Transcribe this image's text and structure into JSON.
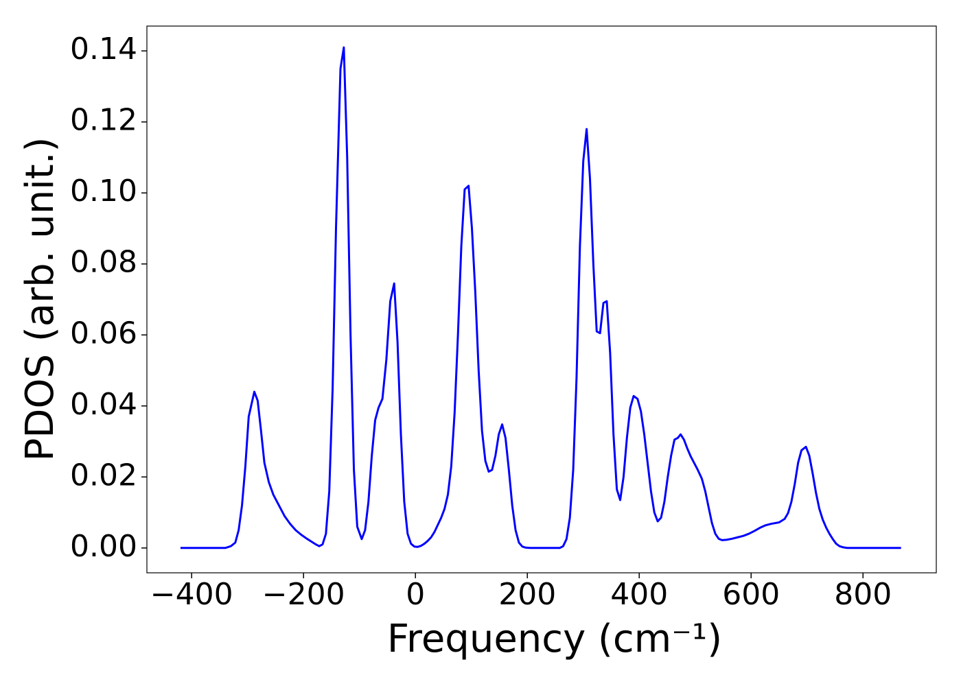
{
  "chart_data": {
    "type": "line",
    "x_label": "Frequency (cm⁻¹)",
    "y_label": "PDOS (arb. unit.)",
    "color": "#0000ff",
    "xlim": [
      -480,
      931
    ],
    "ylim": [
      -0.007,
      0.147
    ],
    "xticks": [
      {
        "value": -400,
        "label": "−400"
      },
      {
        "value": -200,
        "label": "−200"
      },
      0,
      200,
      400,
      600,
      800
    ],
    "yticks": [
      {
        "value": 0,
        "label": "0.00"
      },
      {
        "value": 0.02,
        "label": "0.02"
      },
      {
        "value": 0.04,
        "label": "0.04"
      },
      {
        "value": 0.06,
        "label": "0.06"
      },
      {
        "value": 0.08,
        "label": "0.08"
      },
      {
        "value": 0.1,
        "label": "0.10"
      },
      {
        "value": 0.12,
        "label": "0.12"
      },
      {
        "value": 0.14,
        "label": "0.14"
      }
    ],
    "x": [
      -420,
      -340,
      -330,
      -322,
      -316,
      -310,
      -304,
      -298,
      -288,
      -282,
      -276,
      -270,
      -262,
      -254,
      -244,
      -234,
      -224,
      -214,
      -204,
      -194,
      -184,
      -178,
      -172,
      -166,
      -160,
      -154,
      -148,
      -142,
      -134,
      -128,
      -122,
      -116,
      -110,
      -104,
      -96,
      -90,
      -84,
      -78,
      -72,
      -66,
      -59,
      -52,
      -45,
      -38,
      -32,
      -26,
      -20,
      -14,
      -8,
      -2,
      4,
      10,
      16,
      22,
      28,
      34,
      40,
      46,
      52,
      58,
      64,
      70,
      76,
      82,
      88,
      95,
      101,
      107,
      113,
      119,
      125,
      131,
      137,
      143,
      149,
      155,
      161,
      167,
      173,
      179,
      185,
      191,
      197,
      205,
      258,
      264,
      270,
      276,
      282,
      288,
      294,
      300,
      306,
      312,
      318,
      324,
      330,
      336,
      342,
      348,
      354,
      360,
      366,
      372,
      378,
      384,
      390,
      397,
      403,
      409,
      415,
      421,
      427,
      433,
      439,
      445,
      451,
      457,
      463,
      469,
      474,
      480,
      486,
      492,
      498,
      504,
      512,
      518,
      524,
      530,
      536,
      542,
      548,
      556,
      566,
      576,
      586,
      596,
      606,
      616,
      626,
      636,
      650,
      660,
      666,
      672,
      678,
      684,
      690,
      698,
      704,
      710,
      716,
      722,
      728,
      734,
      740,
      746,
      752,
      758,
      764,
      772,
      868
    ],
    "values": [
      0,
      0,
      0.0005,
      0.0015,
      0.005,
      0.012,
      0.023,
      0.037,
      0.044,
      0.0415,
      0.033,
      0.024,
      0.0185,
      0.015,
      0.012,
      0.009,
      0.0068,
      0.005,
      0.0037,
      0.0026,
      0.0016,
      0.001,
      0.0005,
      0.001,
      0.004,
      0.016,
      0.045,
      0.09,
      0.135,
      0.141,
      0.11,
      0.06,
      0.022,
      0.006,
      0.0025,
      0.005,
      0.013,
      0.026,
      0.036,
      0.0395,
      0.042,
      0.053,
      0.0695,
      0.0745,
      0.058,
      0.032,
      0.013,
      0.004,
      0.0012,
      0.0004,
      0.0003,
      0.0006,
      0.0012,
      0.002,
      0.003,
      0.0045,
      0.0065,
      0.0085,
      0.011,
      0.015,
      0.023,
      0.038,
      0.06,
      0.085,
      0.101,
      0.102,
      0.09,
      0.072,
      0.05,
      0.033,
      0.0245,
      0.0215,
      0.022,
      0.026,
      0.032,
      0.0348,
      0.031,
      0.022,
      0.012,
      0.005,
      0.0015,
      0.0004,
      0.0001,
      0,
      0,
      0.0005,
      0.0025,
      0.0085,
      0.022,
      0.048,
      0.085,
      0.109,
      0.118,
      0.104,
      0.08,
      0.061,
      0.0605,
      0.069,
      0.0695,
      0.055,
      0.032,
      0.0165,
      0.0135,
      0.02,
      0.031,
      0.0395,
      0.0428,
      0.042,
      0.0385,
      0.032,
      0.024,
      0.016,
      0.01,
      0.0075,
      0.0085,
      0.013,
      0.02,
      0.026,
      0.0305,
      0.031,
      0.032,
      0.0305,
      0.028,
      0.0258,
      0.024,
      0.0222,
      0.0195,
      0.016,
      0.0115,
      0.007,
      0.004,
      0.0026,
      0.0022,
      0.0023,
      0.0026,
      0.003,
      0.0034,
      0.004,
      0.0048,
      0.0057,
      0.0064,
      0.0068,
      0.0072,
      0.0082,
      0.0098,
      0.013,
      0.018,
      0.024,
      0.0275,
      0.0285,
      0.026,
      0.021,
      0.0155,
      0.011,
      0.008,
      0.0058,
      0.004,
      0.0025,
      0.0012,
      0.0005,
      0.0002,
      0,
      0
    ]
  }
}
